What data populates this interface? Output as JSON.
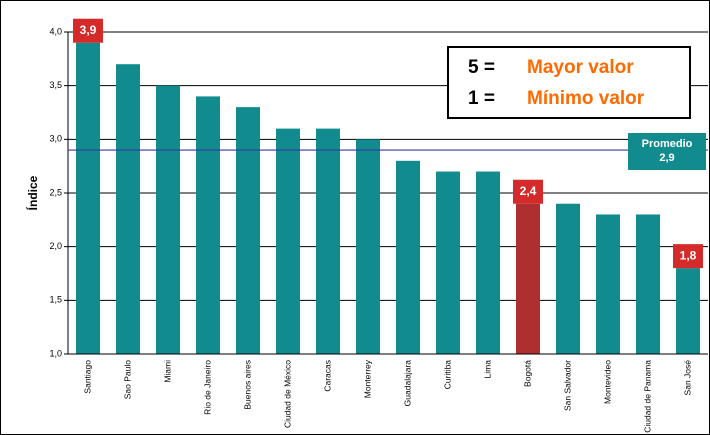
{
  "chart_data": {
    "type": "bar",
    "y_label": "Índice",
    "categories": [
      "Santiago",
      "Sao Paulo",
      "Miami",
      "Rio de Janeiro",
      "Buenos aires",
      "Ciudad de México",
      "Caracas",
      "Monterrey",
      "Guadalajara",
      "Curitiba",
      "Lima",
      "Bogotá",
      "San Salvador",
      "Montevideo",
      "Ciudad de Panama",
      "San José"
    ],
    "values": [
      3.9,
      3.7,
      3.5,
      3.4,
      3.3,
      3.1,
      3.1,
      3.0,
      2.8,
      2.7,
      2.7,
      2.4,
      2.4,
      2.3,
      2.3,
      1.8
    ],
    "value_labels": [
      "3,9",
      null,
      null,
      null,
      null,
      null,
      null,
      null,
      null,
      null,
      null,
      "2,4",
      null,
      null,
      null,
      "1,8"
    ],
    "colors": [
      "#128b8e",
      "#128b8e",
      "#128b8e",
      "#128b8e",
      "#128b8e",
      "#128b8e",
      "#128b8e",
      "#128b8e",
      "#128b8e",
      "#128b8e",
      "#128b8e",
      "#ad2f2f",
      "#128b8e",
      "#128b8e",
      "#128b8e",
      "#128b8e"
    ],
    "label_color": "#d42a2a",
    "ylim": [
      1.0,
      4.0
    ],
    "yticks": [
      {
        "value": 1.0,
        "label": "1,0"
      },
      {
        "value": 1.5,
        "label": "1,5"
      },
      {
        "value": 2.0,
        "label": "2,0"
      },
      {
        "value": 2.5,
        "label": "2,5"
      },
      {
        "value": 3.0,
        "label": "3,0"
      },
      {
        "value": 3.5,
        "label": "3,5"
      },
      {
        "value": 4.0,
        "label": "4,0"
      }
    ],
    "grid": true,
    "reference_line": {
      "value": 2.9,
      "label": "Promedio",
      "value_label": "2,9",
      "color": "#3a3aa0"
    },
    "legend": [
      {
        "key": "5 =",
        "text": "Mayor valor"
      },
      {
        "key": "1 =",
        "text": "Mínimo valor"
      }
    ]
  }
}
